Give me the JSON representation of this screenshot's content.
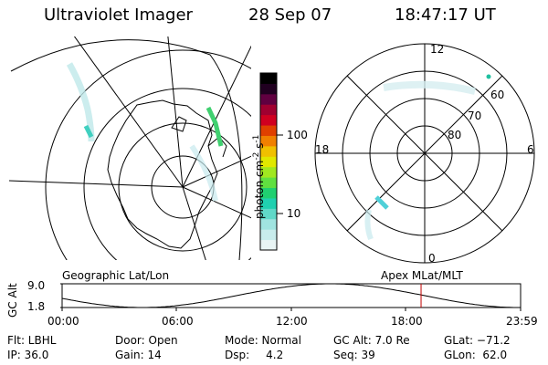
{
  "header": {
    "title": "Ultraviolet Imager",
    "date": "28 Sep 07",
    "time": "18:47:17 UT"
  },
  "geo_panel": {
    "caption": "Geographic Lat/Lon"
  },
  "polar_panel": {
    "caption": "Apex MLat/MLT",
    "mlt_labels": {
      "top": "12",
      "left": "18",
      "right": "6",
      "bottom": "0"
    },
    "lat_labels": [
      "60",
      "70",
      "80"
    ]
  },
  "colorbar": {
    "unit_label": "photon cm",
    "unit_sup1": "-2",
    "unit_mid": "s",
    "unit_sup2": "-1",
    "ticks": [
      "100",
      "10"
    ],
    "colors": [
      "#e8f4f4",
      "#c8ecec",
      "#a0e4e0",
      "#60d8c8",
      "#20d0b0",
      "#20d070",
      "#60e040",
      "#a0e820",
      "#e0e800",
      "#f0c000",
      "#f08000",
      "#e04000",
      "#d00020",
      "#a00030",
      "#600040",
      "#200020",
      "#000000"
    ]
  },
  "timeline": {
    "ylabel": "GC Alt",
    "y_ticks": [
      "9.0",
      "1.8"
    ],
    "x_ticks": [
      "00:00",
      "06:00",
      "12:00",
      "18:00",
      "23:59"
    ],
    "current_time_hours": 18.79
  },
  "info": {
    "filter": "Flt: LBHL",
    "ip": "IP: 36.0",
    "door": "Door: Open",
    "gain": "Gain: 14",
    "mode": "Mode: Normal",
    "dsp_label": "Dsp:",
    "dsp_value": "4.2",
    "gc_alt": "GC Alt: 7.0 Re",
    "seq": "Seq: 39",
    "glat": "GLat: −71.2",
    "glon": "GLon:  62.0"
  }
}
